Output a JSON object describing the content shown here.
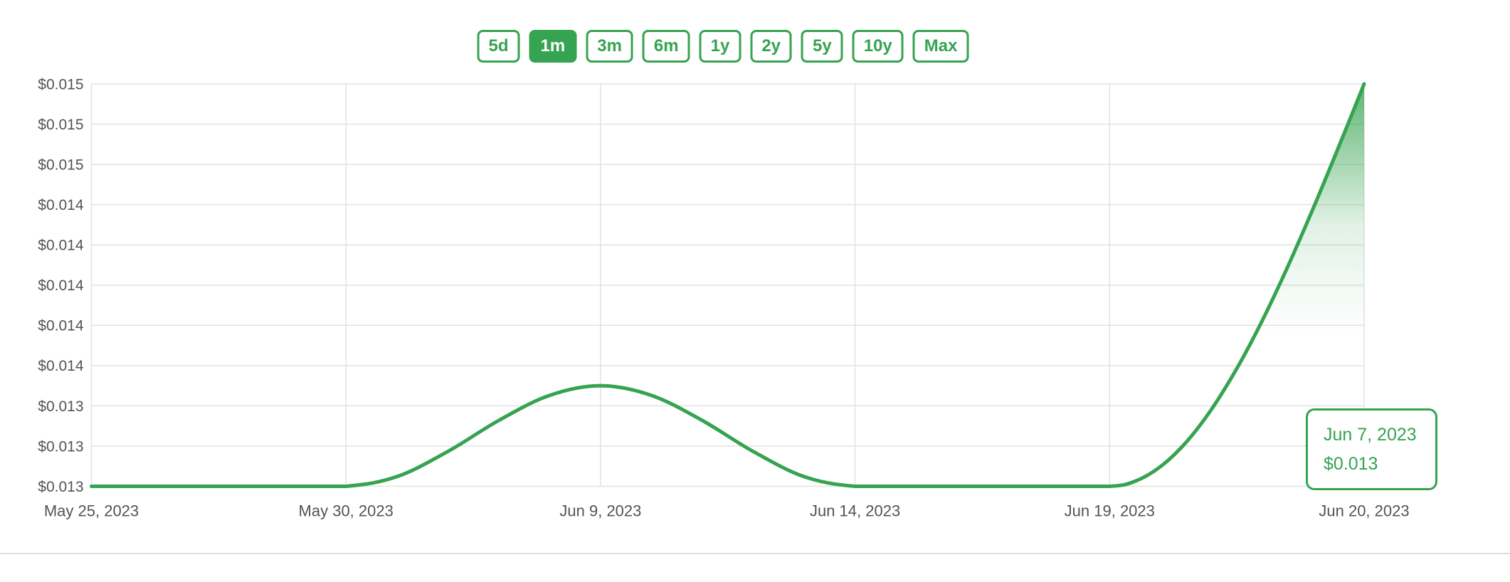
{
  "colors": {
    "accent": "#36A350",
    "grid": "#E2E2E2",
    "axis_text": "#4F545A",
    "divider": "#DCDFE2",
    "background": "#FFFFFF"
  },
  "time_range": {
    "options": [
      "5d",
      "1m",
      "3m",
      "6m",
      "1y",
      "2y",
      "5y",
      "10y",
      "Max"
    ],
    "active": "1m"
  },
  "chart_data": {
    "type": "area",
    "title": "",
    "xlabel": "",
    "ylabel": "",
    "legend": false,
    "grid": true,
    "line_color": "#36A350",
    "x_tick_labels": [
      "May 25, 2023",
      "May 30, 2023",
      "Jun 9, 2023",
      "Jun 14, 2023",
      "Jun 19, 2023",
      "Jun 20, 2023"
    ],
    "y_tick_labels_top_to_bottom": [
      "$0.015",
      "$0.015",
      "$0.015",
      "$0.014",
      "$0.014",
      "$0.014",
      "$0.014",
      "$0.014",
      "$0.013",
      "$0.013",
      "$0.013"
    ],
    "y_axis": {
      "min": 0.013,
      "max": 0.015,
      "tick_step": 0.0002,
      "unit": "USD"
    },
    "points": [
      [
        0.0,
        0.013
      ],
      [
        0.05,
        0.013
      ],
      [
        0.1,
        0.013
      ],
      [
        0.15,
        0.013
      ],
      [
        0.2,
        0.013
      ],
      [
        0.24,
        0.013048
      ],
      [
        0.28,
        0.013173
      ],
      [
        0.32,
        0.013327
      ],
      [
        0.36,
        0.013452
      ],
      [
        0.4,
        0.0135
      ],
      [
        0.44,
        0.013452
      ],
      [
        0.48,
        0.013327
      ],
      [
        0.52,
        0.013173
      ],
      [
        0.56,
        0.013048
      ],
      [
        0.6,
        0.013
      ],
      [
        0.65,
        0.013
      ],
      [
        0.7,
        0.013
      ],
      [
        0.75,
        0.013
      ],
      [
        0.8,
        0.013
      ],
      [
        0.82,
        0.013025
      ],
      [
        0.84,
        0.013098
      ],
      [
        0.86,
        0.013218
      ],
      [
        0.88,
        0.013382
      ],
      [
        0.9,
        0.013586
      ],
      [
        0.92,
        0.013824
      ],
      [
        0.94,
        0.014092
      ],
      [
        0.96,
        0.014382
      ],
      [
        0.98,
        0.014687
      ],
      [
        1.0,
        0.015
      ]
    ],
    "tooltip": {
      "date": "Jun 7, 2023",
      "price": "$0.013"
    }
  }
}
